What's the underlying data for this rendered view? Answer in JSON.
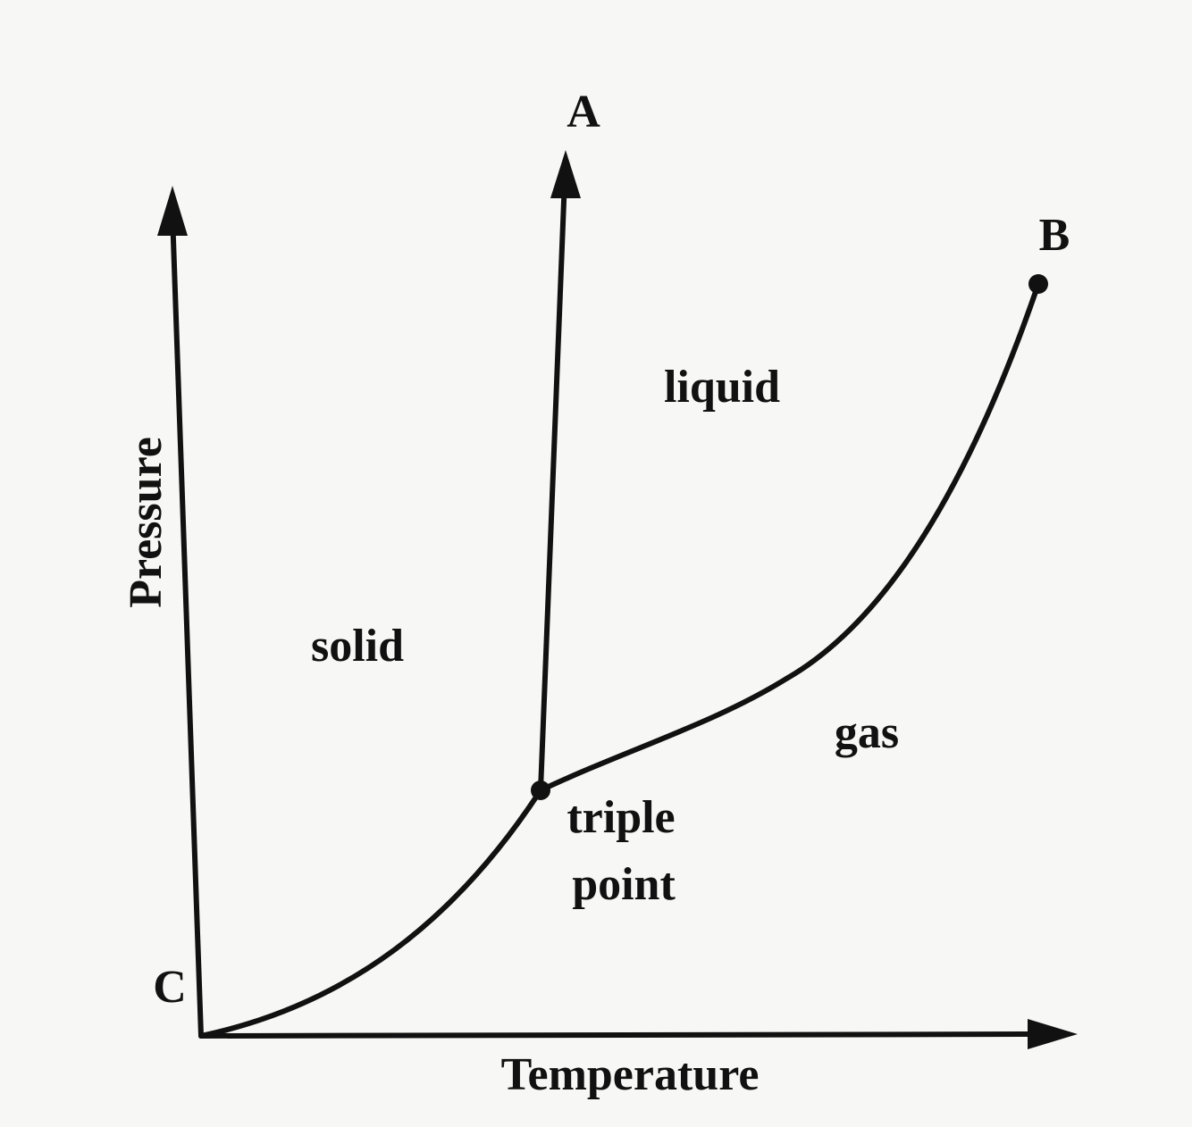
{
  "axes": {
    "x_label": "Temperature",
    "y_label": "Pressure"
  },
  "regions": {
    "solid": "solid",
    "liquid": "liquid",
    "gas": "gas"
  },
  "points": {
    "A": "A",
    "B": "B",
    "C": "C",
    "triple_point": [
      "triple",
      "point"
    ]
  }
}
